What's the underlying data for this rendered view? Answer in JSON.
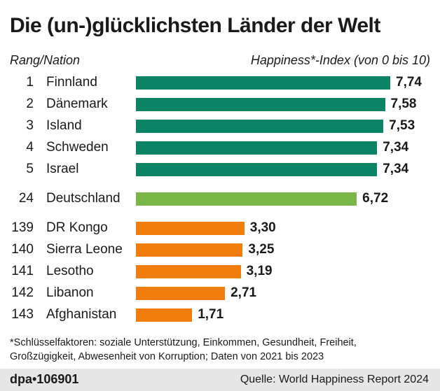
{
  "chart_data": {
    "type": "bar",
    "orientation": "horizontal",
    "title": "Die (un-)glücklichsten Länder der Welt",
    "row_header": "Rang/Nation",
    "value_header": "Happiness*-Index (von 0 bis 10)",
    "xlim": [
      0,
      10
    ],
    "grid": false,
    "rows": [
      {
        "rank": "1",
        "nation": "Finnland",
        "value": 7.74,
        "label": "7,74",
        "color": "#0b8466"
      },
      {
        "rank": "2",
        "nation": "Dänemark",
        "value": 7.58,
        "label": "7,58",
        "color": "#0b8466"
      },
      {
        "rank": "3",
        "nation": "Island",
        "value": 7.53,
        "label": "7,53",
        "color": "#0b8466"
      },
      {
        "rank": "4",
        "nation": "Schweden",
        "value": 7.34,
        "label": "7,34",
        "color": "#0b8466"
      },
      {
        "rank": "5",
        "nation": "Israel",
        "value": 7.34,
        "label": "7,34",
        "color": "#0b8466"
      },
      {
        "rank": "24",
        "nation": "Deutschland",
        "value": 6.72,
        "label": "6,72",
        "color": "#7ab648"
      },
      {
        "rank": "139",
        "nation": "DR Kongo",
        "value": 3.3,
        "label": "3,30",
        "color": "#f07d0c"
      },
      {
        "rank": "140",
        "nation": "Sierra Leone",
        "value": 3.25,
        "label": "3,25",
        "color": "#f07d0c"
      },
      {
        "rank": "141",
        "nation": "Lesotho",
        "value": 3.19,
        "label": "3,19",
        "color": "#f07d0c"
      },
      {
        "rank": "142",
        "nation": "Libanon",
        "value": 2.71,
        "label": "2,71",
        "color": "#f07d0c"
      },
      {
        "rank": "143",
        "nation": "Afghanistan",
        "value": 1.71,
        "label": "1,71",
        "color": "#f07d0c"
      }
    ]
  },
  "footnote": [
    "*Schlüsselfaktoren: soziale Unterstützung, Einkommen, Gesundheit, Freiheit,",
    "Großzügigkeit, Abwesenheit von Korruption; Daten von 2021 bis 2023"
  ],
  "credit": "dpa•106901",
  "source": "Quelle: World Happiness Report 2024"
}
